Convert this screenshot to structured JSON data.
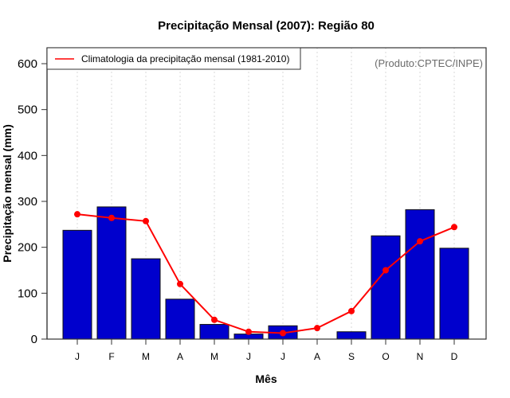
{
  "chart_data": {
    "type": "bar",
    "title": "Precipitação Mensal (2007): Região 80",
    "xlabel": "Mês",
    "ylabel": "Precipitação mensal (mm)",
    "categories": [
      "J",
      "F",
      "M",
      "A",
      "M",
      "J",
      "J",
      "A",
      "S",
      "O",
      "N",
      "D"
    ],
    "ylim": [
      0,
      640
    ],
    "yticks": [
      0,
      100,
      200,
      300,
      400,
      500,
      600
    ],
    "grid": "vertical dotted",
    "series": [
      {
        "name": "Precipitação mensal 2007",
        "type": "bar",
        "color": "#0000cd",
        "values": [
          237,
          288,
          175,
          87,
          32,
          11,
          29,
          0,
          16,
          225,
          282,
          198
        ]
      },
      {
        "name": "Climatologia da precipitação mensal (1981-2010)",
        "type": "line",
        "color": "#ff0000",
        "values": [
          272,
          264,
          257,
          120,
          42,
          16,
          13,
          24,
          61,
          150,
          213,
          244
        ]
      }
    ],
    "legend": {
      "position": "top-left",
      "entries": [
        "Climatologia da precipitação mensal (1981-2010)"
      ]
    },
    "annotation": "(Produto:CPTEC/INPE)"
  }
}
